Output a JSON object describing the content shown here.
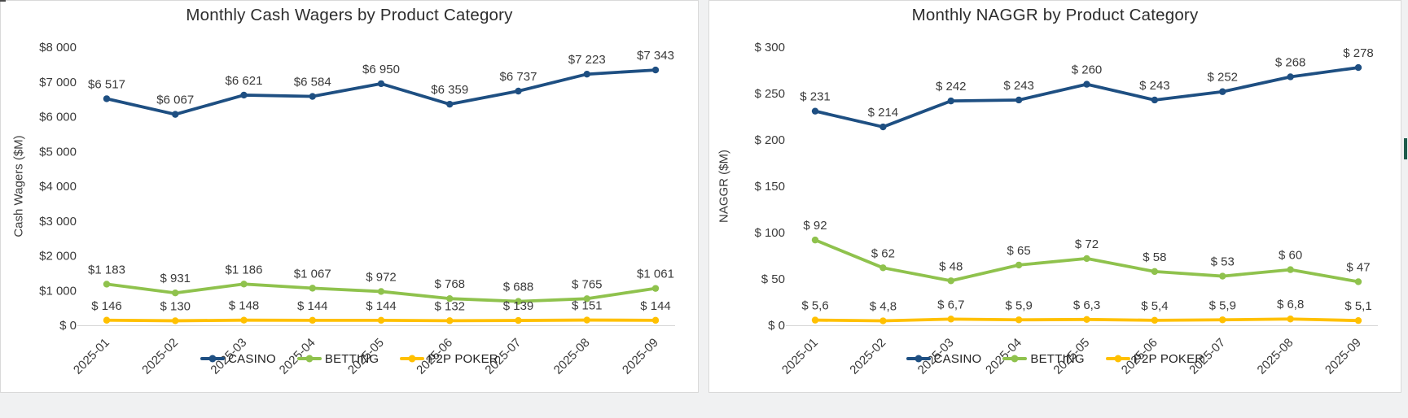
{
  "window": {
    "scrollbar_accent_color": "#1E5C4B",
    "panel_background": "#ffffff",
    "panel_border_color": "#d9d9d9"
  },
  "chart_data": [
    {
      "type": "line",
      "title": "Monthly Cash Wagers by Product Category",
      "ylabel": "Cash Wagers ($M)",
      "xlabel": "",
      "grid": false,
      "legend_position": "bottom",
      "categories": [
        "2025-01",
        "2025-02",
        "2025-03",
        "2025-04",
        "2025-05",
        "2025-06",
        "2025-07",
        "2025-08",
        "2025-09"
      ],
      "ylim": [
        0,
        8000
      ],
      "y_ticks": [
        {
          "v": 8000,
          "label": "$8 000"
        },
        {
          "v": 7000,
          "label": "$7 000"
        },
        {
          "v": 6000,
          "label": "$6 000"
        },
        {
          "v": 5000,
          "label": "$5 000"
        },
        {
          "v": 4000,
          "label": "$4 000"
        },
        {
          "v": 3000,
          "label": "$3 000"
        },
        {
          "v": 2000,
          "label": "$2 000"
        },
        {
          "v": 1000,
          "label": "$1 000"
        },
        {
          "v": 0,
          "label": "$ 0"
        }
      ],
      "series": [
        {
          "name": "CASINO",
          "color": "#1E4F82",
          "values": [
            6517,
            6067,
            6621,
            6584,
            6950,
            6359,
            6737,
            7223,
            7343
          ],
          "labels": [
            "$6 517",
            "$6 067",
            "$6 621",
            "$6 584",
            "$6 950",
            "$6 359",
            "$6 737",
            "$7 223",
            "$7 343"
          ]
        },
        {
          "name": "BETTING",
          "color": "#8FC24D",
          "values": [
            1183,
            931,
            1186,
            1067,
            972,
            768,
            688,
            765,
            1061
          ],
          "labels": [
            "$1 183",
            "$ 931",
            "$1 186",
            "$1 067",
            "$ 972",
            "$ 768",
            "$ 688",
            "$ 765",
            "$1 061"
          ]
        },
        {
          "name": "P2P POKER",
          "color": "#FFC000",
          "values": [
            146,
            130,
            148,
            144,
            144,
            132,
            139,
            151,
            144
          ],
          "labels": [
            "$ 146",
            "$ 130",
            "$ 148",
            "$ 144",
            "$ 144",
            "$ 132",
            "$ 139",
            "$ 151",
            "$ 144"
          ]
        }
      ]
    },
    {
      "type": "line",
      "title": "Monthly NAGGR by Product Category",
      "ylabel": "NAGGR ($M)",
      "xlabel": "",
      "grid": false,
      "legend_position": "bottom",
      "categories": [
        "2025-01",
        "2025-02",
        "2025-03",
        "2025-04",
        "2025-05",
        "2025-06",
        "2025-07",
        "2025-08",
        "2025-09"
      ],
      "ylim": [
        0,
        300
      ],
      "y_ticks": [
        {
          "v": 300,
          "label": "$ 300"
        },
        {
          "v": 250,
          "label": "$ 250"
        },
        {
          "v": 200,
          "label": "$ 200"
        },
        {
          "v": 150,
          "label": "$ 150"
        },
        {
          "v": 100,
          "label": "$ 100"
        },
        {
          "v": 50,
          "label": "$ 50"
        },
        {
          "v": 0,
          "label": "$ 0"
        }
      ],
      "series": [
        {
          "name": "CASINO",
          "color": "#1E4F82",
          "values": [
            231,
            214,
            242,
            243,
            260,
            243,
            252,
            268,
            278
          ],
          "labels": [
            "$ 231",
            "$ 214",
            "$ 242",
            "$ 243",
            "$ 260",
            "$ 243",
            "$ 252",
            "$ 268",
            "$ 278"
          ]
        },
        {
          "name": "BETTING",
          "color": "#8FC24D",
          "values": [
            92,
            62,
            48,
            65,
            72,
            58,
            53,
            60,
            47
          ],
          "labels": [
            "$ 92",
            "$ 62",
            "$ 48",
            "$ 65",
            "$ 72",
            "$ 58",
            "$ 53",
            "$ 60",
            "$ 47"
          ]
        },
        {
          "name": "P2P POKER",
          "color": "#FFC000",
          "values": [
            5.6,
            4.8,
            6.7,
            5.9,
            6.3,
            5.4,
            5.9,
            6.8,
            5.1
          ],
          "labels": [
            "$ 5,6",
            "$ 4,8",
            "$ 6,7",
            "$ 5,9",
            "$ 6,3",
            "$ 5,4",
            "$ 5,9",
            "$ 6,8",
            "$ 5,1"
          ]
        }
      ]
    }
  ]
}
